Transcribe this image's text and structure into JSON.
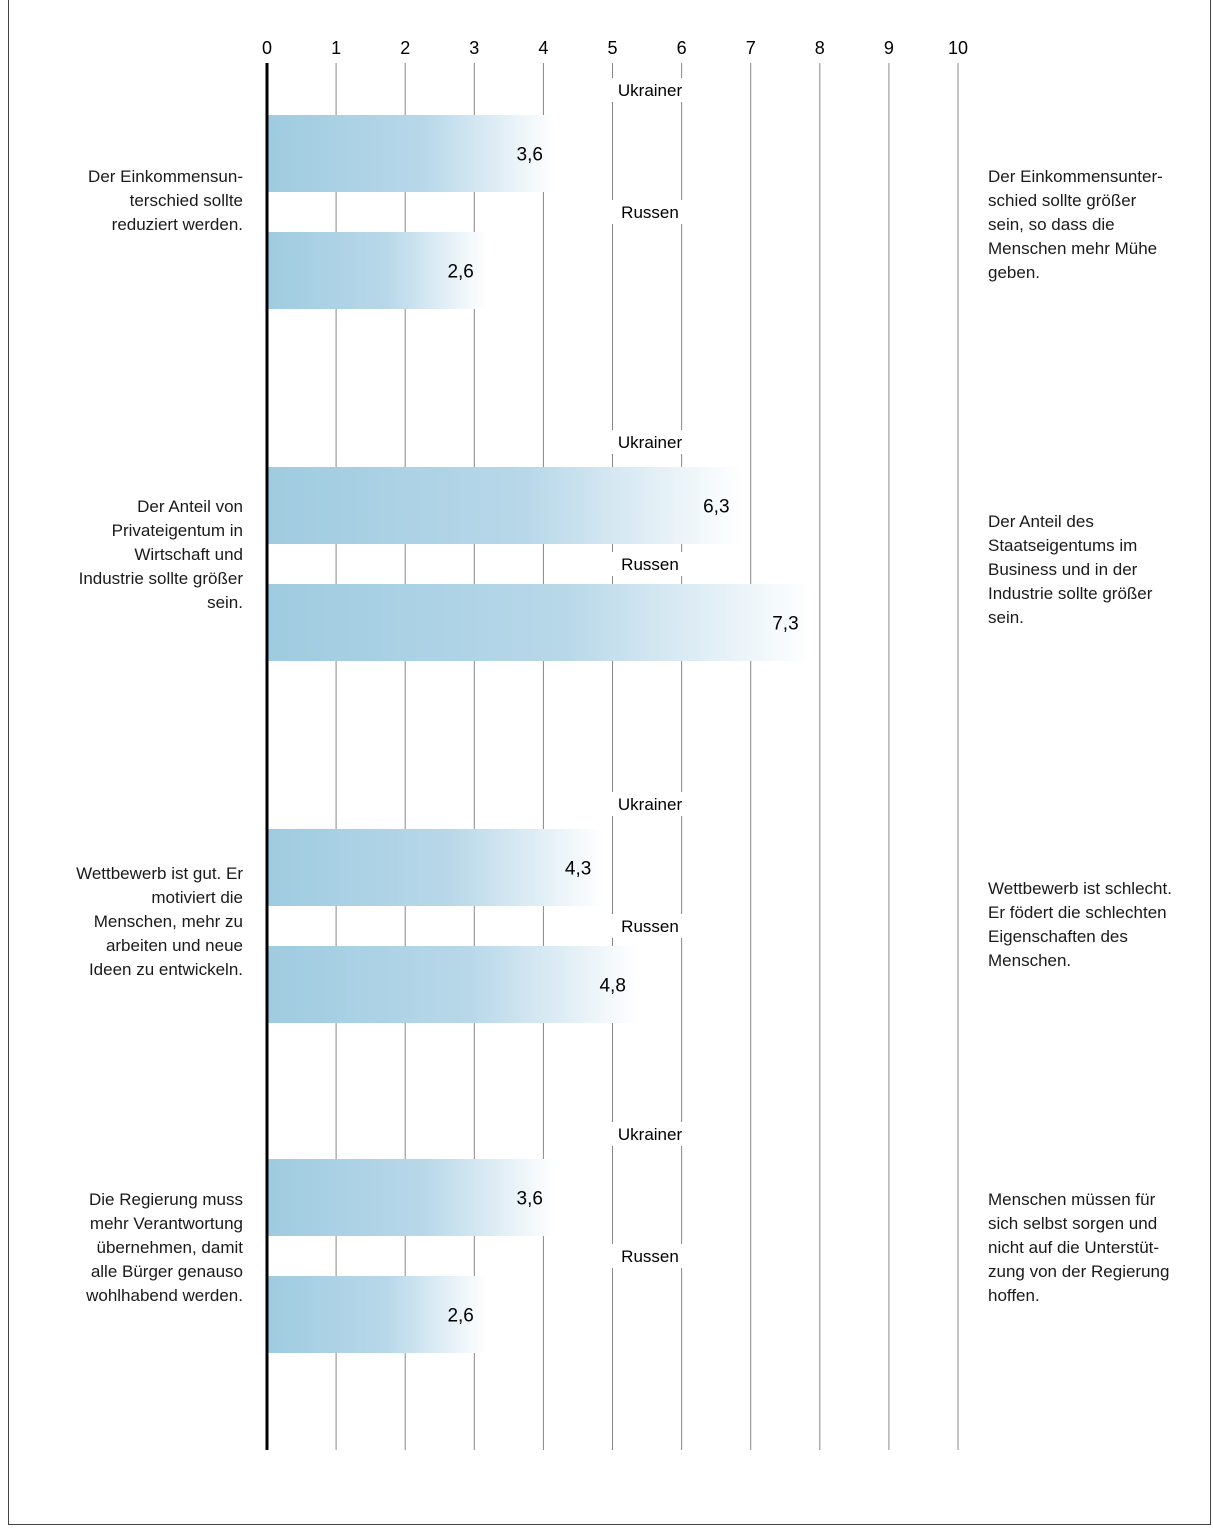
{
  "chart_data": {
    "type": "bar",
    "orientation": "horizontal",
    "xlim": [
      0,
      10
    ],
    "ticks": [
      "0",
      "1",
      "2",
      "3",
      "4",
      "5",
      "6",
      "7",
      "8",
      "9",
      "10"
    ],
    "grid": true,
    "bar_colors": {
      "start": "#9fcbe0",
      "end": "#ffffff"
    },
    "groups": [
      {
        "left_label": "Der Einkommensun-\nterschied sollte\nreduziert werden.",
        "right_label": "Der Einkommensunter-\nschied sollte größer\nsein, so dass die\nMenschen mehr Mühe\ngeben.",
        "bars": [
          {
            "name": "Ukrainer",
            "value": 3.6,
            "value_label": "3,6"
          },
          {
            "name": "Russen",
            "value": 2.6,
            "value_label": "2,6"
          }
        ]
      },
      {
        "left_label": "Der Anteil von\nPrivateigentum in\nWirtschaft und\nIndustrie sollte größer\nsein.",
        "right_label": "Der Anteil des\nStaatseigentums im\nBusiness und in der\nIndustrie sollte größer\nsein.",
        "bars": [
          {
            "name": "Ukrainer",
            "value": 6.3,
            "value_label": "6,3"
          },
          {
            "name": "Russen",
            "value": 7.3,
            "value_label": "7,3"
          }
        ]
      },
      {
        "left_label": "Wettbewerb ist gut. Er\nmotiviert die\nMenschen, mehr zu\narbeiten und neue\nIdeen zu entwickeln.",
        "right_label": "Wettbewerb ist schlecht.\nEr födert die schlechten\nEigenschaften des\nMenschen.",
        "bars": [
          {
            "name": "Ukrainer",
            "value": 4.3,
            "value_label": "4,3"
          },
          {
            "name": "Russen",
            "value": 4.8,
            "value_label": "4,8"
          }
        ]
      },
      {
        "left_label": "Die Regierung muss\nmehr Verantwortung\nübernehmen, damit\nalle Bürger genauso\nwohlhabend werden.",
        "right_label": "Menschen müssen für\nsich selbst sorgen und\nnicht auf die Unterstüt-\nzung von der Regierung\nhoffen.",
        "bars": [
          {
            "name": "Ukrainer",
            "value": 3.6,
            "value_label": "3,6"
          },
          {
            "name": "Russen",
            "value": 2.6,
            "value_label": "2,6"
          }
        ]
      }
    ]
  }
}
